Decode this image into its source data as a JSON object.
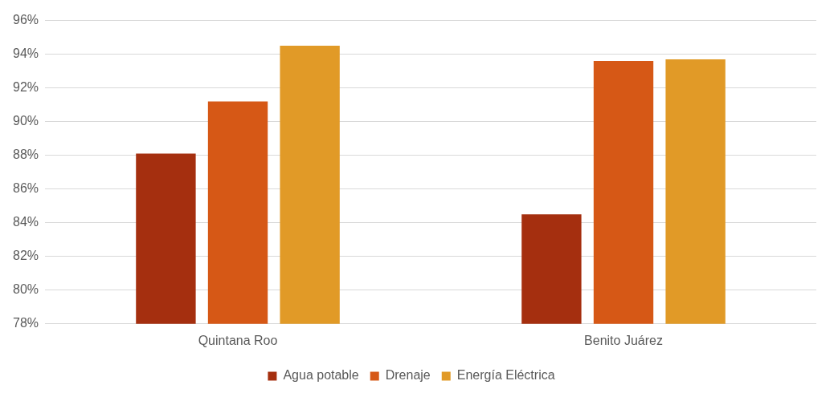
{
  "chart_data": {
    "type": "bar",
    "categories": [
      "Quintana Roo",
      "Benito Juárez"
    ],
    "series": [
      {
        "name": "Agua potable",
        "color": "#a52f0f",
        "values": [
          88.1,
          84.5
        ]
      },
      {
        "name": "Drenaje",
        "color": "#d65816",
        "values": [
          91.2,
          93.6
        ]
      },
      {
        "name": "Energía Eléctrica",
        "color": "#e19a27",
        "values": [
          94.5,
          93.7
        ]
      }
    ],
    "ylim": [
      78,
      96
    ],
    "yticks": [
      {
        "value": 78,
        "label": "78%"
      },
      {
        "value": 80,
        "label": "80%"
      },
      {
        "value": 82,
        "label": "82%"
      },
      {
        "value": 84,
        "label": "84%"
      },
      {
        "value": 86,
        "label": "86%"
      },
      {
        "value": 88,
        "label": "88%"
      },
      {
        "value": 90,
        "label": "90%"
      },
      {
        "value": 92,
        "label": "92%"
      },
      {
        "value": 94,
        "label": "94%"
      },
      {
        "value": 96,
        "label": "96%"
      }
    ],
    "grid": "y",
    "legend": "bottom"
  }
}
